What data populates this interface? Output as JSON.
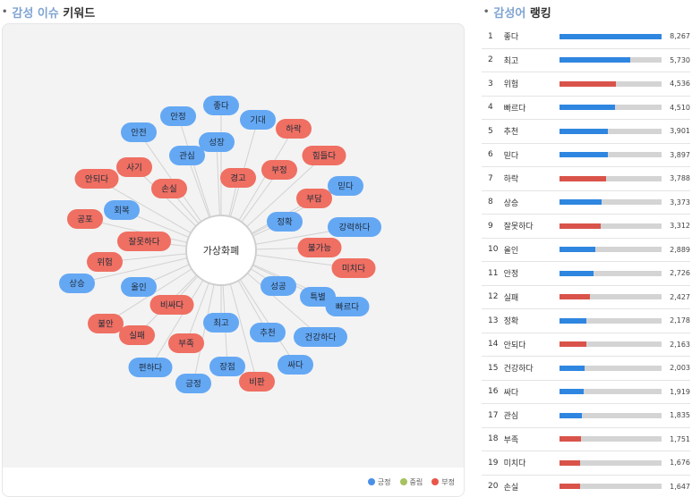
{
  "colors": {
    "positive": "#4a8fe8",
    "neutral": "#a6c25f",
    "negative": "#e8564a",
    "node_positive": "#64a8f4",
    "node_negative": "#ef6f62",
    "bar_positive": "#2f86e0",
    "bar_negative": "#d9534a"
  },
  "left_panel": {
    "title_accent": "감성 이슈",
    "title_rest": " 키워드",
    "center_label": "가상화폐",
    "legend": [
      {
        "label": "긍정",
        "color": "#4a8fe8"
      },
      {
        "label": "중립",
        "color": "#a6c25f"
      },
      {
        "label": "부정",
        "color": "#e8564a"
      }
    ],
    "nodes": [
      {
        "label": "좋다",
        "sentiment": "positive"
      },
      {
        "label": "기대",
        "sentiment": "positive"
      },
      {
        "label": "하락",
        "sentiment": "negative"
      },
      {
        "label": "힘들다",
        "sentiment": "negative"
      },
      {
        "label": "부정",
        "sentiment": "negative"
      },
      {
        "label": "믿다",
        "sentiment": "positive"
      },
      {
        "label": "부담",
        "sentiment": "negative"
      },
      {
        "label": "정확",
        "sentiment": "positive"
      },
      {
        "label": "강력하다",
        "sentiment": "positive"
      },
      {
        "label": "불가능",
        "sentiment": "negative"
      },
      {
        "label": "미치다",
        "sentiment": "negative"
      },
      {
        "label": "성공",
        "sentiment": "positive"
      },
      {
        "label": "특별",
        "sentiment": "positive"
      },
      {
        "label": "빠르다",
        "sentiment": "positive"
      },
      {
        "label": "건강하다",
        "sentiment": "positive"
      },
      {
        "label": "추천",
        "sentiment": "positive"
      },
      {
        "label": "싸다",
        "sentiment": "positive"
      },
      {
        "label": "비판",
        "sentiment": "negative"
      },
      {
        "label": "장점",
        "sentiment": "positive"
      },
      {
        "label": "최고",
        "sentiment": "positive"
      },
      {
        "label": "긍정",
        "sentiment": "positive"
      },
      {
        "label": "부족",
        "sentiment": "negative"
      },
      {
        "label": "편하다",
        "sentiment": "positive"
      },
      {
        "label": "실패",
        "sentiment": "negative"
      },
      {
        "label": "비싸다",
        "sentiment": "negative"
      },
      {
        "label": "불안",
        "sentiment": "negative"
      },
      {
        "label": "올인",
        "sentiment": "positive"
      },
      {
        "label": "상승",
        "sentiment": "positive"
      },
      {
        "label": "위험",
        "sentiment": "negative"
      },
      {
        "label": "잘못하다",
        "sentiment": "negative"
      },
      {
        "label": "공포",
        "sentiment": "negative"
      },
      {
        "label": "회복",
        "sentiment": "positive"
      },
      {
        "label": "손실",
        "sentiment": "negative"
      },
      {
        "label": "안되다",
        "sentiment": "negative"
      },
      {
        "label": "사기",
        "sentiment": "negative"
      },
      {
        "label": "관심",
        "sentiment": "positive"
      },
      {
        "label": "안전",
        "sentiment": "positive"
      },
      {
        "label": "안정",
        "sentiment": "positive"
      },
      {
        "label": "성장",
        "sentiment": "positive"
      },
      {
        "label": "경고",
        "sentiment": "negative"
      }
    ]
  },
  "right_panel": {
    "title_accent": "감성어",
    "title_rest": " 랭킹",
    "max_value": 8267,
    "rows": [
      {
        "rank": "1",
        "word": "좋다",
        "value": 8267,
        "display": "8,267",
        "sentiment": "positive"
      },
      {
        "rank": "2",
        "word": "최고",
        "value": 5730,
        "display": "5,730",
        "sentiment": "positive"
      },
      {
        "rank": "3",
        "word": "위험",
        "value": 4536,
        "display": "4,536",
        "sentiment": "negative"
      },
      {
        "rank": "4",
        "word": "빠르다",
        "value": 4510,
        "display": "4,510",
        "sentiment": "positive"
      },
      {
        "rank": "5",
        "word": "추천",
        "value": 3901,
        "display": "3,901",
        "sentiment": "positive"
      },
      {
        "rank": "6",
        "word": "믿다",
        "value": 3897,
        "display": "3,897",
        "sentiment": "positive"
      },
      {
        "rank": "7",
        "word": "하락",
        "value": 3788,
        "display": "3,788",
        "sentiment": "negative"
      },
      {
        "rank": "8",
        "word": "상승",
        "value": 3373,
        "display": "3,373",
        "sentiment": "positive"
      },
      {
        "rank": "9",
        "word": "잘못하다",
        "value": 3312,
        "display": "3,312",
        "sentiment": "negative"
      },
      {
        "rank": "10",
        "word": "올인",
        "value": 2889,
        "display": "2,889",
        "sentiment": "positive"
      },
      {
        "rank": "11",
        "word": "안정",
        "value": 2726,
        "display": "2,726",
        "sentiment": "positive"
      },
      {
        "rank": "12",
        "word": "실패",
        "value": 2427,
        "display": "2,427",
        "sentiment": "negative"
      },
      {
        "rank": "13",
        "word": "정확",
        "value": 2178,
        "display": "2,178",
        "sentiment": "positive"
      },
      {
        "rank": "14",
        "word": "안되다",
        "value": 2163,
        "display": "2,163",
        "sentiment": "negative"
      },
      {
        "rank": "15",
        "word": "건강하다",
        "value": 2003,
        "display": "2,003",
        "sentiment": "positive"
      },
      {
        "rank": "16",
        "word": "싸다",
        "value": 1919,
        "display": "1,919",
        "sentiment": "positive"
      },
      {
        "rank": "17",
        "word": "관심",
        "value": 1835,
        "display": "1,835",
        "sentiment": "positive"
      },
      {
        "rank": "18",
        "word": "부족",
        "value": 1751,
        "display": "1,751",
        "sentiment": "negative"
      },
      {
        "rank": "19",
        "word": "미치다",
        "value": 1676,
        "display": "1,676",
        "sentiment": "negative"
      },
      {
        "rank": "20",
        "word": "손실",
        "value": 1647,
        "display": "1,647",
        "sentiment": "negative"
      }
    ]
  }
}
